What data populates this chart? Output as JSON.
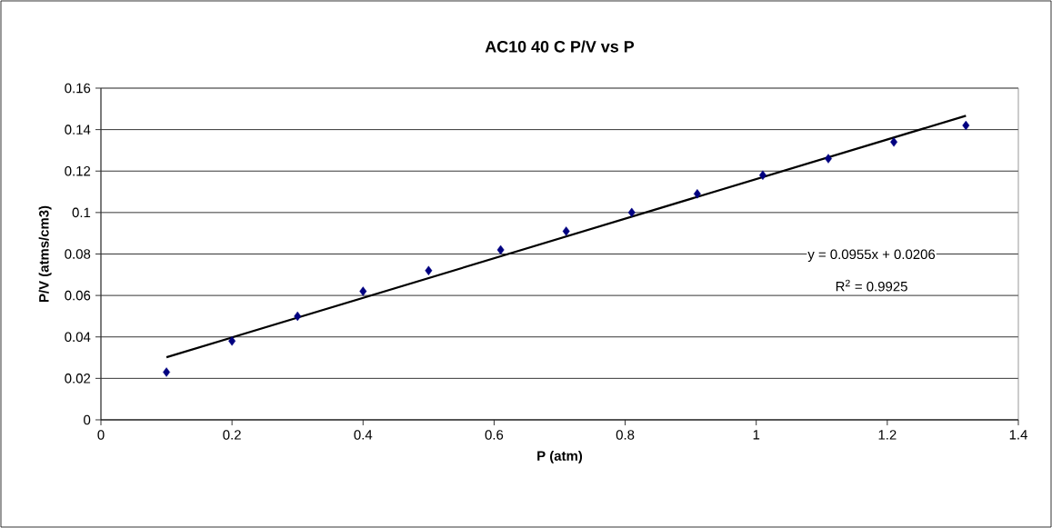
{
  "chart_data": {
    "type": "scatter",
    "title": "AC10 40 C  P/V vs P",
    "xlabel": "P (atm)",
    "ylabel": "P/V (atms/cm3)",
    "x": [
      0.1,
      0.2,
      0.3,
      0.4,
      0.5,
      0.61,
      0.71,
      0.81,
      0.91,
      1.01,
      1.11,
      1.21,
      1.32
    ],
    "series": [
      {
        "color": "#000080",
        "marker": "diamond",
        "values": [
          0.023,
          0.038,
          0.05,
          0.062,
          0.072,
          0.082,
          0.091,
          0.1,
          0.109,
          0.118,
          0.126,
          0.134,
          0.142
        ]
      },
      {
        "type": "line",
        "color": "#000000",
        "marker": "none",
        "x": [
          0.1,
          1.32
        ],
        "values": [
          0.0302,
          0.1467
        ]
      }
    ],
    "xlim": [
      0,
      1.4
    ],
    "xticks": [
      0,
      0.2,
      0.4,
      0.6,
      0.8,
      1,
      1.2,
      1.4
    ],
    "ylim": [
      0,
      0.16
    ],
    "yticks": [
      0,
      0.02,
      0.04,
      0.06,
      0.08,
      0.1,
      0.12,
      0.14,
      0.16
    ],
    "grid": "y",
    "annotations": [
      "y = 0.0955x + 0.0206",
      "R$^{2}$ = 0.9925"
    ]
  }
}
